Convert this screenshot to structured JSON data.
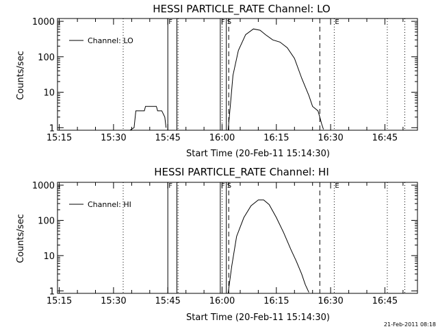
{
  "chart_data": [
    {
      "type": "line",
      "title": "HESSI PARTICLE_RATE Channel: LO",
      "xlabel": "Start Time (20-Feb-11 15:14:30)",
      "ylabel": "Counts/sec",
      "yscale": "log",
      "ylim": [
        0.85,
        1200
      ],
      "xlim": [
        "15:14:30",
        "16:54:00"
      ],
      "x_tick_labels": [
        "15:15",
        "15:30",
        "15:45",
        "16:00",
        "16:15",
        "16:30",
        "16:45"
      ],
      "y_tick_labels": [
        "1",
        "10",
        "100",
        "1000"
      ],
      "legend": {
        "position": "top-left",
        "entries": [
          "Channel: LO"
        ]
      },
      "markers": [
        {
          "label": "F",
          "time": "15:45:00",
          "style": "solid"
        },
        {
          "label": "",
          "time": "15:47:30",
          "style": "solid"
        },
        {
          "label": "F",
          "time": "15:59:30",
          "style": "solid"
        },
        {
          "label": "S",
          "time": "16:01:10",
          "style": "solid"
        },
        {
          "label": "",
          "time": "16:01:50",
          "style": "dashed"
        },
        {
          "label": "",
          "time": "16:27:00",
          "style": "dashed"
        },
        {
          "label": "E",
          "time": "16:31:00",
          "style": "dotted"
        },
        {
          "label": "",
          "time": "15:32:40",
          "style": "dotted"
        },
        {
          "label": "",
          "time": "15:47:50",
          "style": "dotted"
        },
        {
          "label": "",
          "time": "16:00:00",
          "style": "dotted"
        },
        {
          "label": "",
          "time": "16:45:40",
          "style": "dotted"
        },
        {
          "label": "",
          "time": "16:50:30",
          "style": "dotted"
        }
      ],
      "series": [
        {
          "name": "Channel: LO",
          "segments": [
            {
              "x": [
                "15:34:30",
                "15:35:40",
                "15:36:10",
                "15:38:30",
                "15:38:50",
                "15:40:00",
                "15:41:50",
                "15:42:10",
                "15:42:40",
                "15:43:20",
                "15:44:10",
                "15:44:30"
              ],
              "y": [
                0.85,
                1,
                3,
                3,
                4,
                4,
                4,
                3,
                3,
                3,
                2,
                1
              ]
            },
            {
              "x": [
                "16:01:40",
                "16:02:20",
                "16:03:00",
                "16:04:30",
                "16:06:30",
                "16:08:40",
                "16:10:30",
                "16:12:00",
                "16:14:00",
                "16:16:00",
                "16:18:00",
                "16:20:00",
                "16:22:00",
                "16:24:00",
                "16:25:00",
                "16:26:30",
                "16:27:00",
                "16:27:30",
                "16:28:00"
              ],
              "y": [
                0.85,
                5,
                30,
                150,
                420,
                610,
                560,
                420,
                300,
                260,
                180,
                90,
                25,
                8,
                4,
                3,
                2,
                1.3,
                0.9
              ]
            }
          ]
        }
      ]
    },
    {
      "type": "line",
      "title": "HESSI PARTICLE_RATE Channel: HI",
      "xlabel": "Start Time (20-Feb-11 15:14:30)",
      "ylabel": "Counts/sec",
      "yscale": "log",
      "ylim": [
        0.85,
        1200
      ],
      "xlim": [
        "15:14:30",
        "16:54:00"
      ],
      "x_tick_labels": [
        "15:15",
        "15:30",
        "15:45",
        "16:00",
        "16:15",
        "16:30",
        "16:45"
      ],
      "y_tick_labels": [
        "1",
        "10",
        "100",
        "1000"
      ],
      "legend": {
        "position": "top-left",
        "entries": [
          "Channel: HI"
        ]
      },
      "markers": [
        {
          "label": "F",
          "time": "15:45:00",
          "style": "solid"
        },
        {
          "label": "",
          "time": "15:47:30",
          "style": "solid"
        },
        {
          "label": "F",
          "time": "15:59:30",
          "style": "solid"
        },
        {
          "label": "S",
          "time": "16:01:10",
          "style": "solid"
        },
        {
          "label": "",
          "time": "16:01:50",
          "style": "dashed"
        },
        {
          "label": "",
          "time": "16:27:00",
          "style": "dashed"
        },
        {
          "label": "E",
          "time": "16:31:00",
          "style": "dotted"
        },
        {
          "label": "",
          "time": "15:32:40",
          "style": "dotted"
        },
        {
          "label": "",
          "time": "15:47:50",
          "style": "dotted"
        },
        {
          "label": "",
          "time": "16:00:00",
          "style": "dotted"
        },
        {
          "label": "",
          "time": "16:45:40",
          "style": "dotted"
        },
        {
          "label": "",
          "time": "16:50:30",
          "style": "dotted"
        }
      ],
      "series": [
        {
          "name": "Channel: HI",
          "segments": [
            {
              "x": [
                "16:01:40",
                "16:02:40",
                "16:04:00",
                "16:06:00",
                "16:08:00",
                "16:10:00",
                "16:11:30",
                "16:13:00",
                "16:15:00",
                "16:17:00",
                "16:19:00",
                "16:20:30",
                "16:22:00",
                "16:23:00",
                "16:24:00"
              ],
              "y": [
                0.85,
                5,
                35,
                120,
                260,
                380,
                380,
                280,
                120,
                45,
                15,
                7,
                3,
                1.5,
                0.9
              ]
            }
          ]
        }
      ]
    }
  ],
  "footer_stamp": "21-Feb-2011 08:18",
  "colors": {
    "background": "#ffffff",
    "foreground": "#000000"
  }
}
